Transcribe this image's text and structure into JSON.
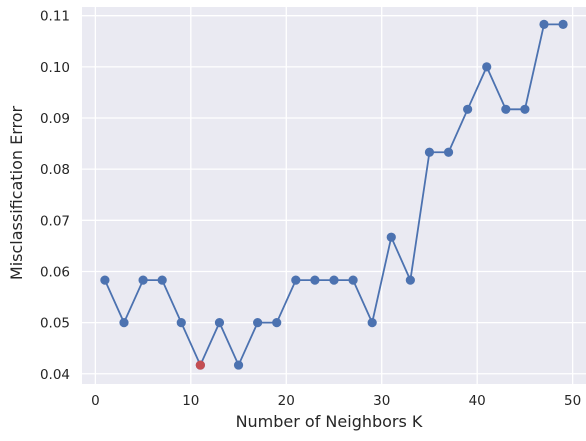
{
  "chart_data": {
    "type": "line",
    "title": "",
    "xlabel": "Number of Neighbors K",
    "ylabel": "Misclassification Error",
    "xlim": [
      -1.4,
      51.4
    ],
    "ylim": [
      0.038,
      0.1117
    ],
    "grid": true,
    "xticks": [
      0,
      10,
      20,
      30,
      40,
      50
    ],
    "yticks": [
      0.04,
      0.05,
      0.06,
      0.07,
      0.08,
      0.09,
      0.1,
      0.11
    ],
    "ytick_labels": [
      "0.04",
      "0.05",
      "0.06",
      "0.07",
      "0.08",
      "0.09",
      "0.10",
      "0.11"
    ],
    "series": [
      {
        "color": "#4c72b0",
        "x": [
          1,
          3,
          5,
          7,
          9,
          11,
          13,
          15,
          17,
          19,
          21,
          23,
          25,
          27,
          29,
          31,
          33,
          35,
          37,
          39,
          41,
          43,
          45,
          47,
          49
        ],
        "y": [
          0.0583,
          0.05,
          0.0583,
          0.0583,
          0.05,
          0.0417,
          0.05,
          0.0417,
          0.05,
          0.05,
          0.0583,
          0.0583,
          0.0583,
          0.0583,
          0.05,
          0.0667,
          0.0583,
          0.0833,
          0.0833,
          0.0917,
          0.1,
          0.0917,
          0.0917,
          0.1083,
          0.1083
        ]
      }
    ],
    "highlight": {
      "x": 11,
      "y": 0.0417,
      "color": "#c44e52"
    },
    "colors": {
      "background": "#eaeaf2",
      "grid": "#ffffff",
      "text": "#262626"
    }
  }
}
